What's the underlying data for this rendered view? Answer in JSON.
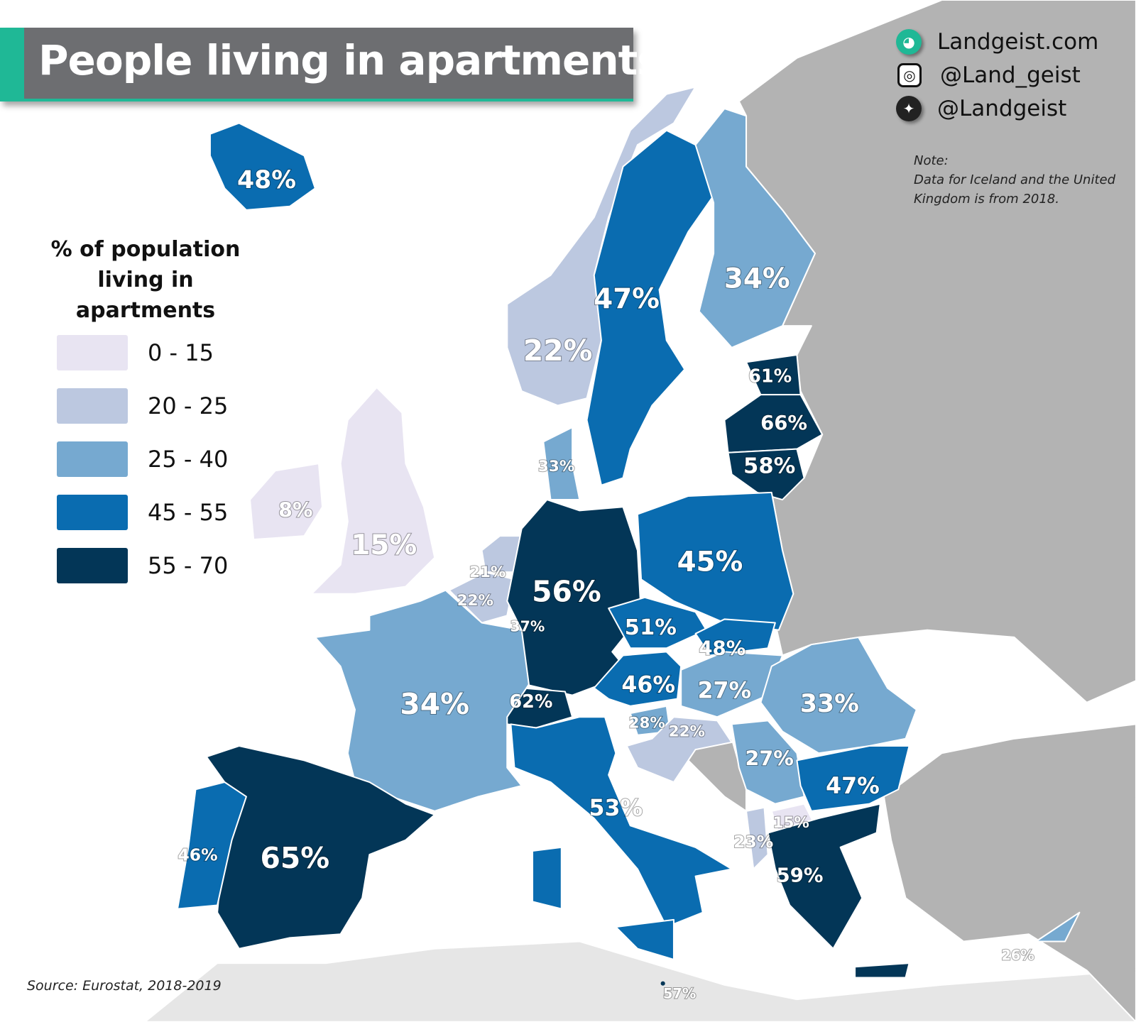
{
  "title": "People living in apartments",
  "legend": {
    "title_line1": "% of population",
    "title_line2": "living in apartments",
    "items": [
      {
        "label": "0  - 15",
        "color": "#e8e4f2"
      },
      {
        "label": "20 - 25",
        "color": "#bcc8e0"
      },
      {
        "label": "25 - 40",
        "color": "#76a9d0"
      },
      {
        "label": "45 - 55",
        "color": "#0a6cb0"
      },
      {
        "label": "55 - 70",
        "color": "#033657"
      }
    ]
  },
  "colors": {
    "no_data": "#b3b3b3",
    "outside": "#e6e6e6",
    "sea": "#ffffff",
    "brand": "#1fb896",
    "title_bar": "#6d6e71"
  },
  "social": {
    "website": "Landgeist.com",
    "instagram": "@Land_geist",
    "twitter": "@Landgeist",
    "icons": [
      "globe-icon",
      "instagram-icon",
      "twitter-icon"
    ]
  },
  "note": {
    "heading": "Note:",
    "line1": "Data for Iceland and the United",
    "line2": "Kingdom is from 2018."
  },
  "source": "Source: Eurostat, 2018-2019",
  "map_labels": [
    "48%",
    "47%",
    "22%",
    "34%",
    "61%",
    "66%",
    "58%",
    "33%",
    "8%",
    "15%",
    "21%",
    "22%",
    "56%",
    "45%",
    "37%",
    "51%",
    "48%",
    "46%",
    "27%",
    "33%",
    "62%",
    "34%",
    "28%",
    "22%",
    "27%",
    "47%",
    "53%",
    "15%",
    "23%",
    "59%",
    "65%",
    "46%",
    "26%",
    "57%"
  ]
}
